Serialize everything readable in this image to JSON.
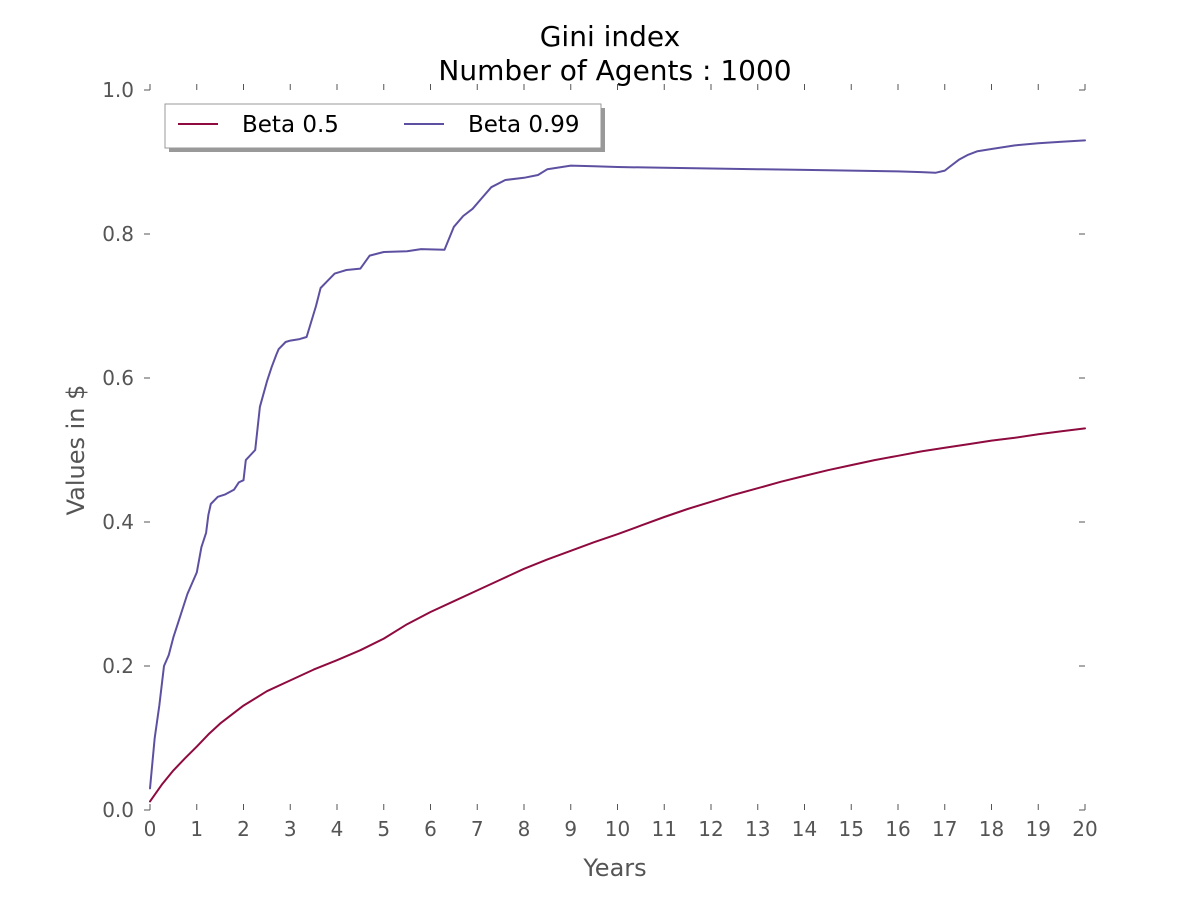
{
  "chart_data": {
    "type": "line",
    "title": "Gini index",
    "subtitle": "Number of Agents : 1000",
    "xlabel": "Years",
    "ylabel": "Values in $",
    "xlim": [
      0,
      20
    ],
    "ylim": [
      0.0,
      1.0
    ],
    "xticks": [
      "0",
      "1",
      "2",
      "3",
      "4",
      "5",
      "6",
      "7",
      "8",
      "9",
      "10",
      "11",
      "12",
      "13",
      "14",
      "15",
      "16",
      "17",
      "18",
      "19",
      "20"
    ],
    "yticks": [
      "0.0",
      "0.2",
      "0.4",
      "0.6",
      "0.8",
      "1.0"
    ],
    "grid": false,
    "legend": {
      "placement": "top-left",
      "columns": 2,
      "shadow": true
    },
    "series": [
      {
        "name": "Beta 0.5",
        "color": "#8e0a3f",
        "x": [
          0,
          0.25,
          0.5,
          0.75,
          1.0,
          1.25,
          1.5,
          2.0,
          2.5,
          3.0,
          3.5,
          4.0,
          4.5,
          5.0,
          5.5,
          6.0,
          6.5,
          7.0,
          7.5,
          8.0,
          8.5,
          9.0,
          9.5,
          10,
          10.5,
          11,
          11.5,
          12,
          12.5,
          13,
          13.5,
          14,
          14.5,
          15,
          15.5,
          16,
          16.5,
          17,
          17.5,
          18,
          18.5,
          19,
          19.5,
          20
        ],
        "y": [
          0.012,
          0.035,
          0.055,
          0.072,
          0.088,
          0.105,
          0.12,
          0.145,
          0.165,
          0.18,
          0.195,
          0.208,
          0.222,
          0.238,
          0.258,
          0.275,
          0.29,
          0.305,
          0.32,
          0.335,
          0.348,
          0.36,
          0.372,
          0.383,
          0.395,
          0.407,
          0.418,
          0.428,
          0.438,
          0.447,
          0.456,
          0.464,
          0.472,
          0.479,
          0.486,
          0.492,
          0.498,
          0.503,
          0.508,
          0.513,
          0.517,
          0.522,
          0.526,
          0.53
        ]
      },
      {
        "name": "Beta 0.99",
        "color": "#5e50a1",
        "x": [
          0,
          0.1,
          0.2,
          0.3,
          0.4,
          0.5,
          0.6,
          0.8,
          1.0,
          1.1,
          1.2,
          1.25,
          1.3,
          1.45,
          1.6,
          1.8,
          1.9,
          2.0,
          2.05,
          2.25,
          2.35,
          2.5,
          2.6,
          2.7,
          2.75,
          2.9,
          3.0,
          3.2,
          3.35,
          3.55,
          3.65,
          3.8,
          3.95,
          4.1,
          4.2,
          4.5,
          4.7,
          5.0,
          5.5,
          5.8,
          6.3,
          6.5,
          6.7,
          6.9,
          7.1,
          7.3,
          7.6,
          8.0,
          8.3,
          8.5,
          9.0,
          9.5,
          10,
          11,
          12,
          13,
          14,
          15,
          16,
          16.5,
          16.8,
          17.0,
          17.1,
          17.3,
          17.5,
          17.7,
          18.0,
          18.5,
          19.0,
          19.5,
          20
        ],
        "y": [
          0.03,
          0.1,
          0.145,
          0.2,
          0.215,
          0.24,
          0.26,
          0.3,
          0.33,
          0.365,
          0.385,
          0.41,
          0.425,
          0.435,
          0.438,
          0.445,
          0.455,
          0.458,
          0.486,
          0.5,
          0.56,
          0.595,
          0.615,
          0.632,
          0.64,
          0.65,
          0.652,
          0.654,
          0.657,
          0.7,
          0.725,
          0.735,
          0.745,
          0.748,
          0.75,
          0.752,
          0.77,
          0.775,
          0.776,
          0.779,
          0.778,
          0.81,
          0.825,
          0.835,
          0.85,
          0.865,
          0.875,
          0.878,
          0.882,
          0.89,
          0.895,
          0.894,
          0.893,
          0.892,
          0.891,
          0.89,
          0.889,
          0.888,
          0.887,
          0.886,
          0.885,
          0.888,
          0.893,
          0.903,
          0.91,
          0.915,
          0.918,
          0.923,
          0.926,
          0.928,
          0.93
        ]
      }
    ]
  }
}
